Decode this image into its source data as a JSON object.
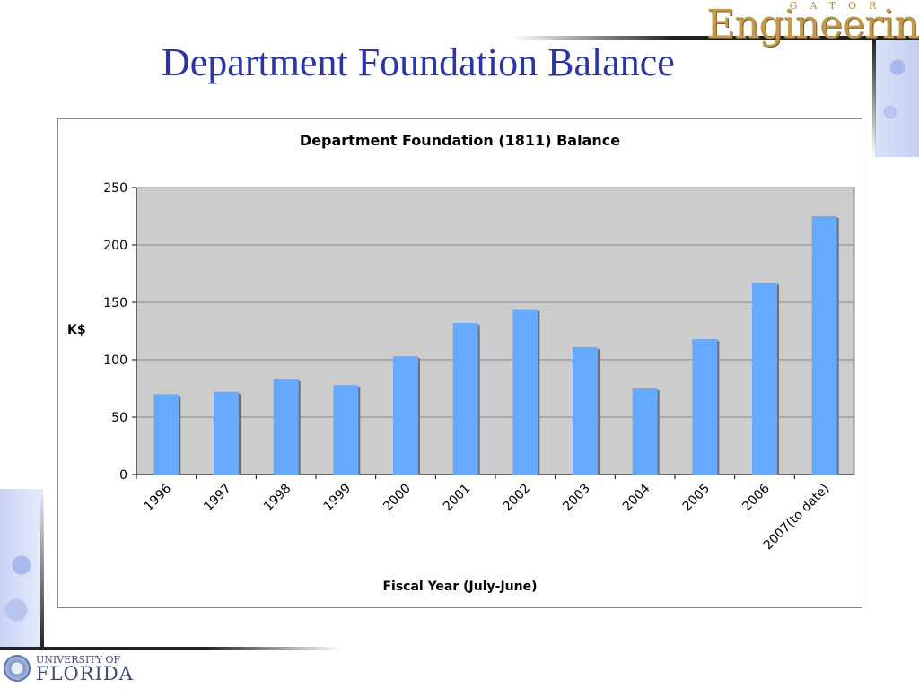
{
  "brand": {
    "small": "GATOR",
    "main": "Engineering"
  },
  "slide": {
    "title": "Department Foundation Balance"
  },
  "footer_logo": {
    "top": "UNIVERSITY OF",
    "main": "FLORIDA"
  },
  "colors": {
    "title": "#2b35a3",
    "bar": "#66aaff",
    "plot_bg": "#cccccc",
    "brand": "#c39a4d"
  },
  "chart_data": {
    "type": "bar",
    "title": "Department Foundation (1811) Balance",
    "xlabel": "Fiscal Year (July-June)",
    "ylabel": "K$",
    "ylim": [
      0,
      250
    ],
    "yticks": [
      0,
      50,
      100,
      150,
      200,
      250
    ],
    "grid": true,
    "legend": "none",
    "categories": [
      "1996",
      "1997",
      "1998",
      "1999",
      "2000",
      "2001",
      "2002",
      "2003",
      "2004",
      "2005",
      "2006",
      "2007(to date)"
    ],
    "values": [
      70,
      72,
      83,
      78,
      103,
      132,
      144,
      111,
      75,
      118,
      167,
      225
    ]
  }
}
